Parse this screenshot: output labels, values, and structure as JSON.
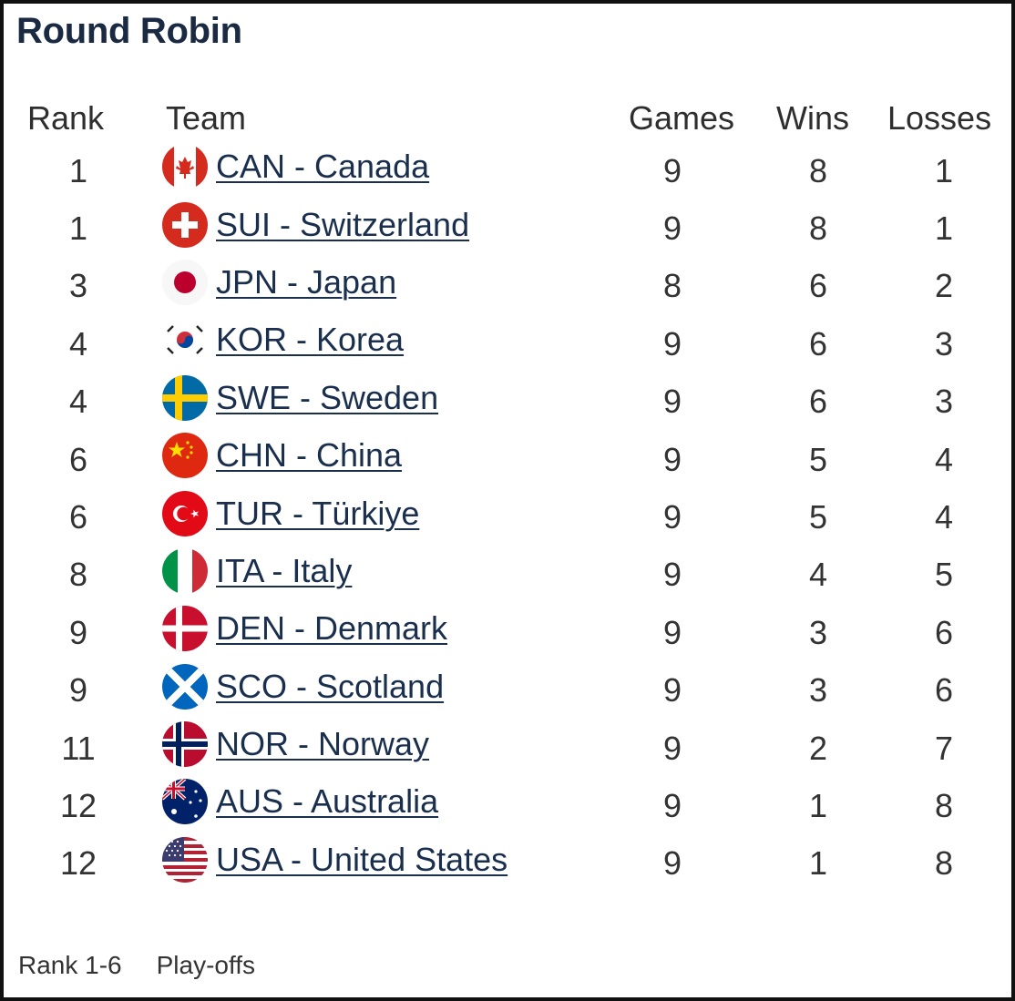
{
  "title": "Round Robin",
  "columns": {
    "rank": "Rank",
    "team": "Team",
    "games": "Games",
    "wins": "Wins",
    "losses": "Losses"
  },
  "rows": [
    {
      "rank": "1",
      "flag_icon": "canada-flag-icon",
      "team": "CAN - Canada",
      "games": "9",
      "wins": "8",
      "losses": "1"
    },
    {
      "rank": "1",
      "flag_icon": "switzerland-flag-icon",
      "team": "SUI - Switzerland",
      "games": "9",
      "wins": "8",
      "losses": "1"
    },
    {
      "rank": "3",
      "flag_icon": "japan-flag-icon",
      "team": "JPN - Japan",
      "games": "8",
      "wins": "6",
      "losses": "2"
    },
    {
      "rank": "4",
      "flag_icon": "korea-flag-icon",
      "team": "KOR - Korea",
      "games": "9",
      "wins": "6",
      "losses": "3"
    },
    {
      "rank": "4",
      "flag_icon": "sweden-flag-icon",
      "team": "SWE - Sweden",
      "games": "9",
      "wins": "6",
      "losses": "3"
    },
    {
      "rank": "6",
      "flag_icon": "china-flag-icon",
      "team": "CHN - China",
      "games": "9",
      "wins": "5",
      "losses": "4"
    },
    {
      "rank": "6",
      "flag_icon": "turkiye-flag-icon",
      "team": "TUR - Türkiye",
      "games": "9",
      "wins": "5",
      "losses": "4"
    },
    {
      "rank": "8",
      "flag_icon": "italy-flag-icon",
      "team": "ITA - Italy",
      "games": "9",
      "wins": "4",
      "losses": "5"
    },
    {
      "rank": "9",
      "flag_icon": "denmark-flag-icon",
      "team": "DEN - Denmark",
      "games": "9",
      "wins": "3",
      "losses": "6"
    },
    {
      "rank": "9",
      "flag_icon": "scotland-flag-icon",
      "team": "SCO - Scotland",
      "games": "9",
      "wins": "3",
      "losses": "6"
    },
    {
      "rank": "11",
      "flag_icon": "norway-flag-icon",
      "team": "NOR - Norway",
      "games": "9",
      "wins": "2",
      "losses": "7"
    },
    {
      "rank": "12",
      "flag_icon": "australia-flag-icon",
      "team": "AUS - Australia",
      "games": "9",
      "wins": "1",
      "losses": "8"
    },
    {
      "rank": "12",
      "flag_icon": "usa-flag-icon",
      "team": "USA - United States",
      "games": "9",
      "wins": "1",
      "losses": "8"
    }
  ],
  "legend": {
    "range": "Rank 1-6",
    "meaning": "Play-offs"
  },
  "colors": {
    "title": "#1a2a42",
    "link": "#1a2f4e",
    "text": "#333333"
  }
}
